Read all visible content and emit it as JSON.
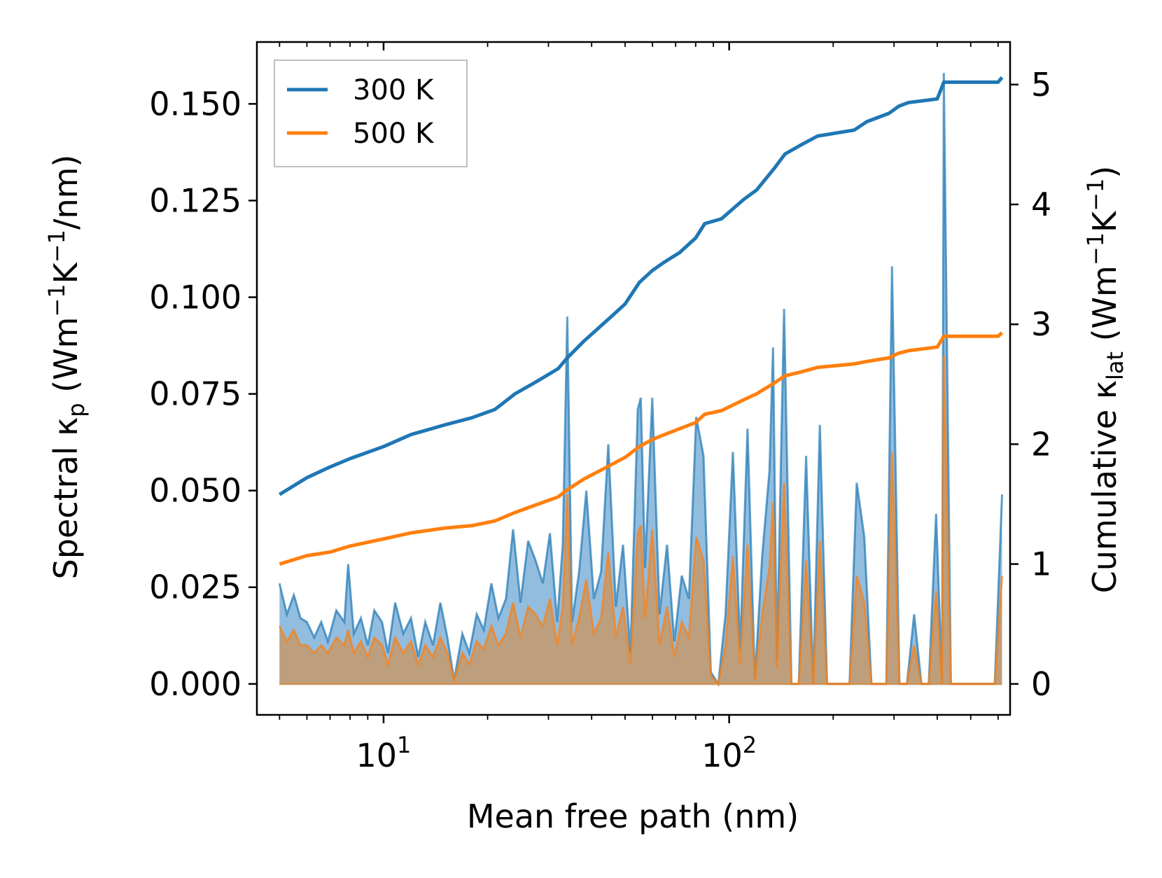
{
  "chart_data": {
    "type": "line",
    "x_scale": "log",
    "xlabel": "Mean free path (nm)",
    "ylabel_left": "Spectral κ_p (Wm⁻¹K⁻¹/nm)",
    "ylabel_right": "Cumulative κ_lat (Wm⁻¹K⁻¹)",
    "xlim": [
      4.3,
      650
    ],
    "ylim_left": [
      -0.008,
      0.166
    ],
    "ylim_right": [
      -0.258,
      5.355
    ],
    "x_ticks": [
      {
        "value": 10,
        "base": "10",
        "exp": "1"
      },
      {
        "value": 100,
        "base": "10",
        "exp": "2"
      }
    ],
    "y_ticks_left": [
      {
        "value": 0.0,
        "label": "0.000"
      },
      {
        "value": 0.025,
        "label": "0.025"
      },
      {
        "value": 0.05,
        "label": "0.050"
      },
      {
        "value": 0.075,
        "label": "0.075"
      },
      {
        "value": 0.1,
        "label": "0.100"
      },
      {
        "value": 0.125,
        "label": "0.125"
      },
      {
        "value": 0.15,
        "label": "0.150"
      }
    ],
    "y_ticks_right": [
      {
        "value": 0,
        "label": "0"
      },
      {
        "value": 1,
        "label": "1"
      },
      {
        "value": 2,
        "label": "2"
      },
      {
        "value": 3,
        "label": "3"
      },
      {
        "value": 4,
        "label": "4"
      },
      {
        "value": 5,
        "label": "5"
      }
    ],
    "legend": {
      "position": "top-left",
      "entries": [
        {
          "name": "300 K",
          "color": "#1f77b4"
        },
        {
          "name": "500 K",
          "color": "#ff7f0e"
        }
      ]
    },
    "series_spectral": [
      {
        "name": "300 K spectral",
        "color": "#1f77b4",
        "fill": "#7fb1d9",
        "points": [
          [
            5,
            0.026
          ],
          [
            5.25,
            0.018
          ],
          [
            5.5,
            0.023
          ],
          [
            5.75,
            0.017
          ],
          [
            6.0,
            0.016
          ],
          [
            6.3,
            0.012
          ],
          [
            6.6,
            0.016
          ],
          [
            6.9,
            0.011
          ],
          [
            7.3,
            0.019
          ],
          [
            7.7,
            0.016
          ],
          [
            7.9,
            0.031
          ],
          [
            8.2,
            0.013
          ],
          [
            8.6,
            0.017
          ],
          [
            9.0,
            0.01
          ],
          [
            9.4,
            0.019
          ],
          [
            9.9,
            0.016
          ],
          [
            10.3,
            0.008
          ],
          [
            10.8,
            0.021
          ],
          [
            11.4,
            0.013
          ],
          [
            12.0,
            0.017
          ],
          [
            12.6,
            0.007
          ],
          [
            13.2,
            0.016
          ],
          [
            13.9,
            0.01
          ],
          [
            14.6,
            0.021
          ],
          [
            15.3,
            0.012
          ],
          [
            16.0,
            0.001
          ],
          [
            16.9,
            0.013
          ],
          [
            17.7,
            0.008
          ],
          [
            18.6,
            0.018
          ],
          [
            19.5,
            0.014
          ],
          [
            20.5,
            0.026
          ],
          [
            21.5,
            0.017
          ],
          [
            22.6,
            0.022
          ],
          [
            23.7,
            0.04
          ],
          [
            24.9,
            0.021
          ],
          [
            26.2,
            0.037
          ],
          [
            27.5,
            0.032
          ],
          [
            28.9,
            0.026
          ],
          [
            30.3,
            0.039
          ],
          [
            31.8,
            0.016
          ],
          [
            33.0,
            0.036
          ],
          [
            34.0,
            0.095
          ],
          [
            35.1,
            0.016
          ],
          [
            36.8,
            0.029
          ],
          [
            38.6,
            0.05
          ],
          [
            40.6,
            0.022
          ],
          [
            42.6,
            0.029
          ],
          [
            44.7,
            0.062
          ],
          [
            47.0,
            0.02
          ],
          [
            49.3,
            0.036
          ],
          [
            51.8,
            0.008
          ],
          [
            54.4,
            0.071
          ],
          [
            55.5,
            0.074
          ],
          [
            57.1,
            0.03
          ],
          [
            59.9,
            0.074
          ],
          [
            62.9,
            0.018
          ],
          [
            66.1,
            0.036
          ],
          [
            69.4,
            0.011
          ],
          [
            72.9,
            0.028
          ],
          [
            76.5,
            0.022
          ],
          [
            80.3,
            0.069
          ],
          [
            84.3,
            0.059
          ],
          [
            88.5,
            0.003
          ],
          [
            93.0,
            0.0
          ],
          [
            97.6,
            0.018
          ],
          [
            102.5,
            0.06
          ],
          [
            107.6,
            0.009
          ],
          [
            113.0,
            0.066
          ],
          [
            118.7,
            0.001
          ],
          [
            124.6,
            0.033
          ],
          [
            130.8,
            0.055
          ],
          [
            134.0,
            0.087
          ],
          [
            137.4,
            0.006
          ],
          [
            144.2,
            0.097
          ],
          [
            151.4,
            0.0
          ],
          [
            159.0,
            0.0
          ],
          [
            167.0,
            0.059
          ],
          [
            175.0,
            0.0
          ],
          [
            183.0,
            0.067
          ],
          [
            192.0,
            0.0
          ],
          [
            202.0,
            0.0
          ],
          [
            212.0,
            0.0
          ],
          [
            223.0,
            0.0
          ],
          [
            234.0,
            0.052
          ],
          [
            246.0,
            0.038
          ],
          [
            258.0,
            0.0
          ],
          [
            271.0,
            0.0
          ],
          [
            285.0,
            0.0
          ],
          [
            296.0,
            0.108
          ],
          [
            311.0,
            0.0
          ],
          [
            327.0,
            0.0
          ],
          [
            343.0,
            0.018
          ],
          [
            360.0,
            0.0
          ],
          [
            378.0,
            0.0
          ],
          [
            397.0,
            0.044
          ],
          [
            413.0,
            0.0
          ],
          [
            418.0,
            0.158
          ],
          [
            438.0,
            0.0
          ],
          [
            460.0,
            0.0
          ],
          [
            483.0,
            0.0
          ],
          [
            507.0,
            0.0
          ],
          [
            532.0,
            0.0
          ],
          [
            559.0,
            0.0
          ],
          [
            587.0,
            0.0
          ],
          [
            616.0,
            0.049
          ]
        ]
      },
      {
        "name": "500 K spectral",
        "color": "#ff7f0e",
        "fill": "#c49a6c",
        "points": [
          [
            5,
            0.015
          ],
          [
            5.25,
            0.011
          ],
          [
            5.5,
            0.014
          ],
          [
            5.75,
            0.01
          ],
          [
            6.0,
            0.01
          ],
          [
            6.3,
            0.008
          ],
          [
            6.6,
            0.01
          ],
          [
            6.9,
            0.008
          ],
          [
            7.3,
            0.012
          ],
          [
            7.7,
            0.01
          ],
          [
            7.9,
            0.014
          ],
          [
            8.2,
            0.008
          ],
          [
            8.6,
            0.011
          ],
          [
            9.0,
            0.007
          ],
          [
            9.4,
            0.012
          ],
          [
            9.9,
            0.01
          ],
          [
            10.3,
            0.005
          ],
          [
            10.8,
            0.012
          ],
          [
            11.4,
            0.008
          ],
          [
            12.0,
            0.011
          ],
          [
            12.6,
            0.005
          ],
          [
            13.2,
            0.01
          ],
          [
            13.9,
            0.007
          ],
          [
            14.6,
            0.012
          ],
          [
            15.3,
            0.008
          ],
          [
            16.0,
            0.001
          ],
          [
            16.9,
            0.008
          ],
          [
            17.7,
            0.005
          ],
          [
            18.6,
            0.011
          ],
          [
            19.5,
            0.009
          ],
          [
            20.5,
            0.015
          ],
          [
            21.5,
            0.01
          ],
          [
            22.6,
            0.013
          ],
          [
            23.7,
            0.021
          ],
          [
            24.9,
            0.012
          ],
          [
            26.2,
            0.02
          ],
          [
            27.5,
            0.018
          ],
          [
            28.9,
            0.015
          ],
          [
            30.3,
            0.022
          ],
          [
            31.8,
            0.01
          ],
          [
            33.0,
            0.02
          ],
          [
            34.0,
            0.049
          ],
          [
            35.1,
            0.01
          ],
          [
            36.8,
            0.017
          ],
          [
            38.6,
            0.027
          ],
          [
            40.6,
            0.013
          ],
          [
            42.6,
            0.017
          ],
          [
            44.7,
            0.034
          ],
          [
            47.0,
            0.012
          ],
          [
            49.3,
            0.02
          ],
          [
            51.8,
            0.005
          ],
          [
            54.4,
            0.039
          ],
          [
            55.5,
            0.041
          ],
          [
            57.1,
            0.017
          ],
          [
            59.9,
            0.04
          ],
          [
            62.9,
            0.01
          ],
          [
            66.1,
            0.02
          ],
          [
            69.4,
            0.007
          ],
          [
            72.9,
            0.016
          ],
          [
            76.5,
            0.012
          ],
          [
            80.3,
            0.038
          ],
          [
            84.3,
            0.032
          ],
          [
            88.5,
            0.002
          ],
          [
            93.0,
            0.0
          ],
          [
            97.6,
            0.01
          ],
          [
            102.5,
            0.033
          ],
          [
            107.6,
            0.005
          ],
          [
            113.0,
            0.036
          ],
          [
            118.7,
            0.001
          ],
          [
            124.6,
            0.018
          ],
          [
            130.8,
            0.03
          ],
          [
            134.0,
            0.047
          ],
          [
            137.4,
            0.004
          ],
          [
            144.2,
            0.052
          ],
          [
            151.4,
            0.0
          ],
          [
            159.0,
            0.0
          ],
          [
            167.0,
            0.032
          ],
          [
            175.0,
            0.0
          ],
          [
            183.0,
            0.037
          ],
          [
            192.0,
            0.0
          ],
          [
            202.0,
            0.0
          ],
          [
            212.0,
            0.0
          ],
          [
            223.0,
            0.0
          ],
          [
            234.0,
            0.028
          ],
          [
            246.0,
            0.021
          ],
          [
            258.0,
            0.0
          ],
          [
            271.0,
            0.0
          ],
          [
            285.0,
            0.0
          ],
          [
            296.0,
            0.06
          ],
          [
            311.0,
            0.0
          ],
          [
            327.0,
            0.0
          ],
          [
            343.0,
            0.01
          ],
          [
            360.0,
            0.0
          ],
          [
            378.0,
            0.0
          ],
          [
            397.0,
            0.024
          ],
          [
            413.0,
            0.0
          ],
          [
            418.0,
            0.085
          ],
          [
            438.0,
            0.0
          ],
          [
            460.0,
            0.0
          ],
          [
            483.0,
            0.0
          ],
          [
            507.0,
            0.0
          ],
          [
            532.0,
            0.0
          ],
          [
            559.0,
            0.0
          ],
          [
            587.0,
            0.0
          ],
          [
            616.0,
            0.028
          ]
        ]
      }
    ],
    "series_cumulative": [
      {
        "name": "300 K",
        "color": "#1f77b4",
        "points": [
          [
            5,
            1.58
          ],
          [
            6,
            1.72
          ],
          [
            7,
            1.81
          ],
          [
            8,
            1.88
          ],
          [
            10,
            1.98
          ],
          [
            12,
            2.08
          ],
          [
            15,
            2.16
          ],
          [
            18,
            2.22
          ],
          [
            21,
            2.29
          ],
          [
            24,
            2.42
          ],
          [
            28,
            2.53
          ],
          [
            32,
            2.63
          ],
          [
            34,
            2.72
          ],
          [
            38,
            2.86
          ],
          [
            45,
            3.05
          ],
          [
            50,
            3.17
          ],
          [
            55,
            3.35
          ],
          [
            60,
            3.45
          ],
          [
            65,
            3.52
          ],
          [
            72,
            3.6
          ],
          [
            80,
            3.72
          ],
          [
            85,
            3.84
          ],
          [
            95,
            3.88
          ],
          [
            110,
            4.04
          ],
          [
            120,
            4.12
          ],
          [
            135,
            4.3
          ],
          [
            145,
            4.42
          ],
          [
            160,
            4.49
          ],
          [
            180,
            4.57
          ],
          [
            230,
            4.62
          ],
          [
            250,
            4.69
          ],
          [
            290,
            4.76
          ],
          [
            310,
            4.82
          ],
          [
            330,
            4.85
          ],
          [
            400,
            4.88
          ],
          [
            418,
            5.02
          ],
          [
            600,
            5.02
          ],
          [
            616,
            5.06
          ]
        ]
      },
      {
        "name": "500 K",
        "color": "#ff7f0e",
        "points": [
          [
            5,
            1.0
          ],
          [
            6,
            1.07
          ],
          [
            7,
            1.1
          ],
          [
            8,
            1.15
          ],
          [
            10,
            1.21
          ],
          [
            12,
            1.26
          ],
          [
            15,
            1.3
          ],
          [
            18,
            1.32
          ],
          [
            21,
            1.36
          ],
          [
            24,
            1.43
          ],
          [
            28,
            1.5
          ],
          [
            32,
            1.56
          ],
          [
            34,
            1.62
          ],
          [
            38,
            1.71
          ],
          [
            45,
            1.82
          ],
          [
            50,
            1.89
          ],
          [
            55,
            1.98
          ],
          [
            60,
            2.04
          ],
          [
            65,
            2.08
          ],
          [
            72,
            2.13
          ],
          [
            80,
            2.18
          ],
          [
            85,
            2.25
          ],
          [
            95,
            2.28
          ],
          [
            110,
            2.37
          ],
          [
            120,
            2.42
          ],
          [
            135,
            2.51
          ],
          [
            145,
            2.57
          ],
          [
            160,
            2.6
          ],
          [
            180,
            2.64
          ],
          [
            230,
            2.67
          ],
          [
            250,
            2.69
          ],
          [
            290,
            2.72
          ],
          [
            310,
            2.76
          ],
          [
            330,
            2.78
          ],
          [
            400,
            2.81
          ],
          [
            418,
            2.9
          ],
          [
            600,
            2.9
          ],
          [
            616,
            2.93
          ]
        ]
      }
    ]
  }
}
